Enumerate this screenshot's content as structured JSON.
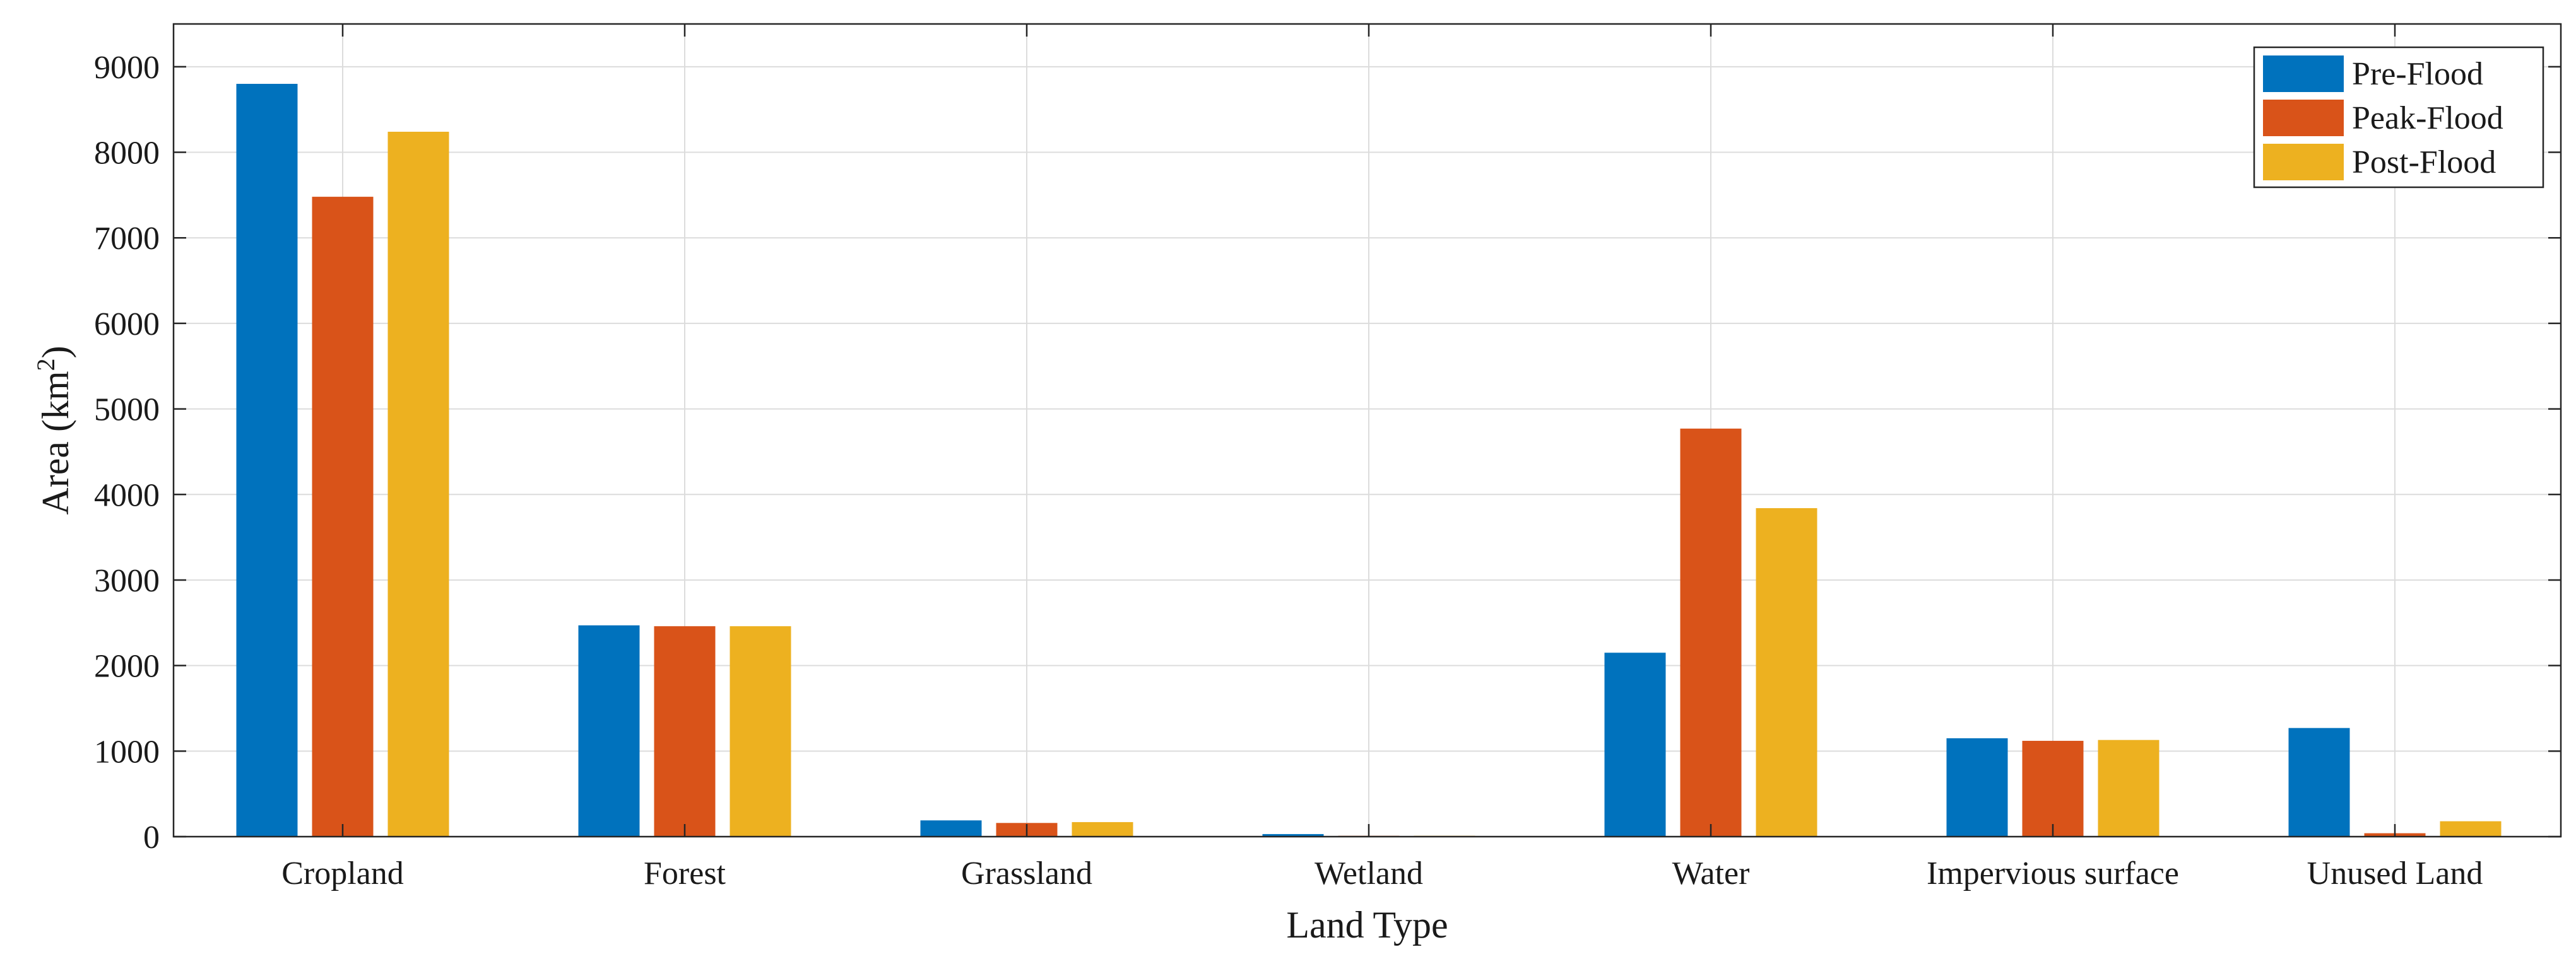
{
  "chart_data": {
    "type": "bar",
    "title": "",
    "xlabel": "Land Type",
    "ylabel_main": "Area (km",
    "ylabel_sup": "2",
    "ylabel_close": ")",
    "ylim": [
      0,
      9500
    ],
    "yticks": [
      0,
      1000,
      2000,
      3000,
      4000,
      5000,
      6000,
      7000,
      8000,
      9000
    ],
    "ytick_labels": [
      "0",
      "1000",
      "2000",
      "3000",
      "4000",
      "5000",
      "6000",
      "7000",
      "8000",
      "9000"
    ],
    "grid": true,
    "legend_position": "top-right",
    "categories": [
      "Cropland",
      "Forest",
      "Grassland",
      "Wetland",
      "Water",
      "Impervious surface",
      "Unused Land"
    ],
    "series": [
      {
        "name": "Pre-Flood",
        "color": "#0072BD",
        "values": [
          8800,
          2470,
          190,
          30,
          2150,
          1150,
          1270
        ]
      },
      {
        "name": "Peak-Flood",
        "color": "#D95319",
        "values": [
          7480,
          2460,
          160,
          10,
          4770,
          1120,
          40
        ]
      },
      {
        "name": "Post-Flood",
        "color": "#EDB120",
        "values": [
          8240,
          2460,
          170,
          10,
          3840,
          1130,
          180
        ]
      }
    ]
  }
}
